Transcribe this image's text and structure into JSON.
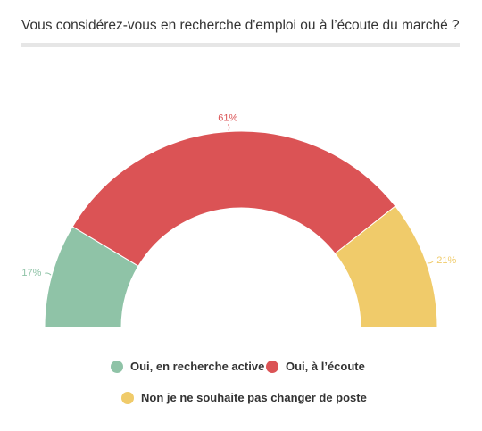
{
  "title": "Vous considérez-vous en recherche d'emploi ou à l’écoute du marché ?",
  "chart_data": {
    "type": "pie",
    "variant": "semi-donut",
    "title": "Vous considérez-vous en recherche d'emploi ou à l’écoute du marché ?",
    "series": [
      {
        "name": "Oui, en recherche active",
        "value": 17,
        "label": "17%",
        "color": "#8fc3a7"
      },
      {
        "name": "Oui, à l’écoute",
        "value": 61,
        "label": "61%",
        "color": "#db5355"
      },
      {
        "name": "Non je ne souhaite pas changer de poste",
        "value": 21,
        "label": "21%",
        "color": "#f0cb6a"
      }
    ],
    "legend": "bottom-center"
  }
}
